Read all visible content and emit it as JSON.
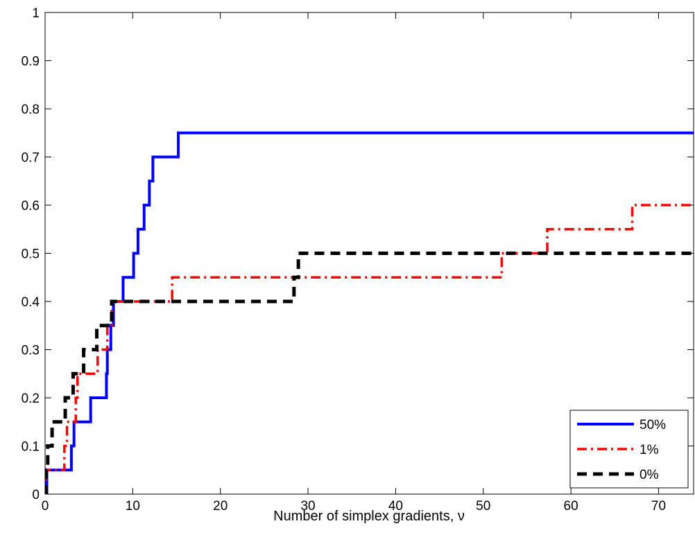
{
  "chart_data": {
    "type": "line",
    "step": true,
    "title": "",
    "xlabel": "Number of simplex gradients, ν",
    "ylabel": "",
    "xlim": [
      0,
      74
    ],
    "ylim": [
      0,
      1
    ],
    "xticks": [
      0,
      10,
      20,
      30,
      40,
      50,
      60,
      70
    ],
    "yticks": [
      0,
      0.1,
      0.2,
      0.3,
      0.4,
      0.5,
      0.6,
      0.7,
      0.8,
      0.9,
      1
    ],
    "grid": false,
    "legend_position": "bottom-right",
    "series": [
      {
        "name": "50%",
        "color": "#0000ff",
        "style": "solid",
        "points": [
          [
            0,
            0
          ],
          [
            0.2,
            0.05
          ],
          [
            3,
            0.1
          ],
          [
            3.3,
            0.15
          ],
          [
            5.2,
            0.2
          ],
          [
            7,
            0.25
          ],
          [
            7.1,
            0.3
          ],
          [
            7.5,
            0.35
          ],
          [
            7.8,
            0.4
          ],
          [
            8.9,
            0.45
          ],
          [
            10.1,
            0.5
          ],
          [
            10.6,
            0.55
          ],
          [
            11.3,
            0.6
          ],
          [
            11.9,
            0.65
          ],
          [
            12.3,
            0.7
          ],
          [
            15.2,
            0.75
          ],
          [
            74,
            0.75
          ]
        ]
      },
      {
        "name": "1%",
        "color": "#ff0000",
        "style": "dashdot",
        "points": [
          [
            0,
            0
          ],
          [
            0.1,
            0.05
          ],
          [
            2.2,
            0.1
          ],
          [
            2.5,
            0.15
          ],
          [
            3.5,
            0.2
          ],
          [
            3.7,
            0.25
          ],
          [
            6,
            0.3
          ],
          [
            7.1,
            0.35
          ],
          [
            7.6,
            0.4
          ],
          [
            14.5,
            0.45
          ],
          [
            52.1,
            0.5
          ],
          [
            57.3,
            0.55
          ],
          [
            67,
            0.6
          ],
          [
            74,
            0.6
          ]
        ]
      },
      {
        "name": "0%",
        "color": "#000000",
        "style": "dashed",
        "points": [
          [
            0,
            0
          ],
          [
            0.1,
            0.05
          ],
          [
            0.3,
            0.1
          ],
          [
            0.8,
            0.15
          ],
          [
            2.3,
            0.2
          ],
          [
            3.2,
            0.25
          ],
          [
            4.4,
            0.3
          ],
          [
            5.9,
            0.35
          ],
          [
            7.6,
            0.4
          ],
          [
            28.4,
            0.45
          ],
          [
            28.9,
            0.5
          ],
          [
            74,
            0.5
          ]
        ]
      }
    ]
  }
}
